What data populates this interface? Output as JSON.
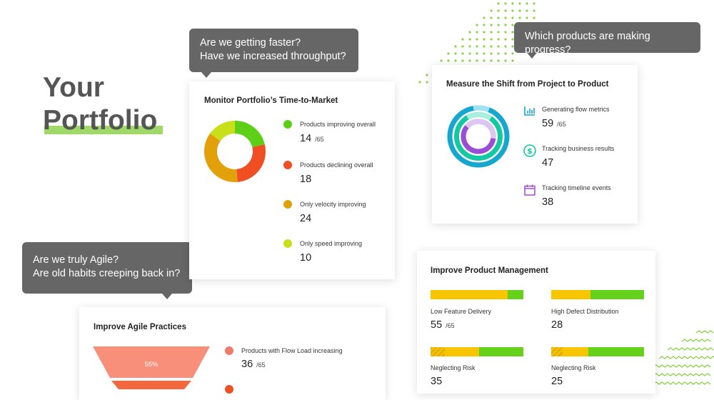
{
  "hero": {
    "line1": "Your",
    "line2": "Portfolio"
  },
  "bubbles": {
    "faster_line1": "Are we getting faster?",
    "faster_line2": "Have we increased throughput?",
    "products": "Which products are making progress?",
    "agile_line1": "Are we truly Agile?",
    "agile_line2": "Are old habits creeping back in?"
  },
  "ttm": {
    "title": "Monitor Portfolio’s Time-to-Market",
    "items": [
      {
        "label": "Products improving overall",
        "value": "14",
        "denom": "/65",
        "color": "#5ecf17"
      },
      {
        "label": "Products declining overall",
        "value": "18",
        "denom": "",
        "color": "#f04e23"
      },
      {
        "label": "Only velocity improving",
        "value": "24",
        "denom": "",
        "color": "#e2a00a"
      },
      {
        "label": "Only speed improving",
        "value": "10",
        "denom": "",
        "color": "#c8e01a"
      }
    ]
  },
  "shift": {
    "title": "Measure the Shift from Project to Product",
    "items": [
      {
        "label": "Generating flow metrics",
        "value": "59",
        "denom": "/65",
        "icon": "bar-chart-icon",
        "color": "#1aa3c9"
      },
      {
        "label": "Tracking business results",
        "value": "47",
        "denom": "",
        "icon": "dollar-icon",
        "color": "#13c9a3"
      },
      {
        "label": "Tracking timeline events",
        "value": "38",
        "denom": "",
        "icon": "calendar-icon",
        "color": "#9b4dd6"
      }
    ]
  },
  "pm": {
    "title": "Improve Product Management",
    "items": [
      {
        "label": "Low Feature Delivery",
        "value": "55",
        "denom": "/65",
        "yellow": 0.83,
        "green": 0.17,
        "hatched": false
      },
      {
        "label": "High Defect Distribution",
        "value": "28",
        "denom": "",
        "yellow": 0.42,
        "green": 0.58,
        "hatched": false
      },
      {
        "label": "Neglecting Risk",
        "value": "35",
        "denom": "",
        "yellow": 0.52,
        "green": 0.48,
        "hatched": true
      },
      {
        "label": "Neglecting Risk",
        "value": "25",
        "denom": "",
        "yellow": 0.4,
        "green": 0.6,
        "hatched": true
      }
    ]
  },
  "agile": {
    "title": "Improve Agile Practices",
    "funnel_label": "55%",
    "items": [
      {
        "label": "Products with Flow Load increasing",
        "value": "36",
        "denom": "/65",
        "color": "#f27a6a"
      }
    ]
  },
  "colors": {
    "bubble": "#666666",
    "accent_green": "#8fd14f",
    "yellow": "#f7c600",
    "green": "#66d11a"
  }
}
